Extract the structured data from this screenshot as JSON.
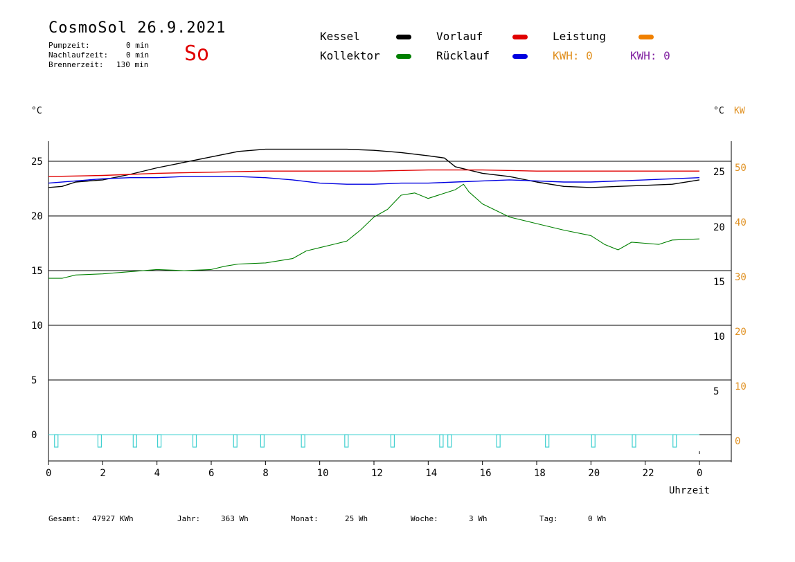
{
  "header": {
    "title": "CosmoSol 26.9.2021",
    "day": "So",
    "stats": [
      {
        "label": "Pumpzeit:",
        "value": "0 min"
      },
      {
        "label": "Nachlaufzeit:",
        "value": "0 min"
      },
      {
        "label": "Brennerzeit:",
        "value": "130 min"
      }
    ]
  },
  "legend": {
    "kessel": {
      "label": "Kessel",
      "color": "#000000"
    },
    "kollektor": {
      "label": "Kollektor",
      "color": "#008000"
    },
    "vorlauf": {
      "label": "Vorlauf",
      "color": "#e00000"
    },
    "ruecklauf": {
      "label": "Rücklauf",
      "color": "#0000e0"
    },
    "leistung": {
      "label": "Leistung",
      "color": "#f08000"
    },
    "kwh1": "KWH: 0",
    "kwh1_color": "#e09020",
    "kwh2": "KWH: 0",
    "kwh2_color": "#8020a0"
  },
  "axes": {
    "left_unit": "°C",
    "right_unit": "°C",
    "right_unit2": "KW",
    "xlabel": "Uhrzeit"
  },
  "footer": [
    {
      "label": "Gesamt:",
      "value": "47927 KWh"
    },
    {
      "label": "Jahr:",
      "value": "363 Wh"
    },
    {
      "label": "Monat:",
      "value": "25 Wh"
    },
    {
      "label": "Woche:",
      "value": "3 Wh"
    },
    {
      "label": "Tag:",
      "value": "0 Wh"
    }
  ],
  "chart_data": {
    "type": "line",
    "xlabel": "Uhrzeit",
    "ylabel": "°C",
    "x_ticks": [
      "0",
      "2",
      "4",
      "6",
      "8",
      "10",
      "12",
      "14",
      "16",
      "18",
      "20",
      "22",
      "0"
    ],
    "y_left_ticks": [
      "0",
      "5",
      "10",
      "15",
      "20",
      "25"
    ],
    "y_right_ticks": [
      "5",
      "10",
      "15",
      "20",
      "25"
    ],
    "y_kw_ticks": [
      "0",
      "10",
      "20",
      "30",
      "40",
      "50"
    ],
    "xlim": [
      0,
      24
    ],
    "ylim": [
      -2.5,
      27
    ],
    "grid": true,
    "series": [
      {
        "name": "Kessel",
        "color": "#000000",
        "x": [
          0,
          0.5,
          1,
          2,
          3,
          4,
          5,
          6,
          7,
          8,
          9,
          10,
          11,
          12,
          13,
          14,
          14.6,
          15,
          16,
          17,
          18,
          19,
          20,
          21,
          22,
          23,
          24
        ],
        "y": [
          22.6,
          22.7,
          23.1,
          23.3,
          23.8,
          24.4,
          24.9,
          25.4,
          25.9,
          26.1,
          26.1,
          26.1,
          26.1,
          26.0,
          25.8,
          25.5,
          25.3,
          24.5,
          23.9,
          23.6,
          23.1,
          22.7,
          22.6,
          22.7,
          22.8,
          22.9,
          23.3
        ]
      },
      {
        "name": "Vorlauf",
        "color": "#e00000",
        "x": [
          0,
          2,
          4,
          6,
          8,
          10,
          12,
          14,
          16,
          18,
          20,
          22,
          24
        ],
        "y": [
          23.6,
          23.7,
          23.9,
          24.0,
          24.1,
          24.1,
          24.1,
          24.2,
          24.2,
          24.1,
          24.1,
          24.1,
          24.1
        ]
      },
      {
        "name": "Rücklauf",
        "color": "#0000e0",
        "x": [
          0,
          1,
          2,
          3,
          4,
          5,
          6,
          7,
          8,
          9,
          10,
          11,
          12,
          13,
          14,
          15,
          16,
          17,
          18,
          19,
          20,
          21,
          22,
          23,
          24
        ],
        "y": [
          23.0,
          23.2,
          23.4,
          23.5,
          23.5,
          23.6,
          23.6,
          23.6,
          23.5,
          23.3,
          23.0,
          22.9,
          22.9,
          23.0,
          23.0,
          23.1,
          23.2,
          23.3,
          23.2,
          23.1,
          23.1,
          23.2,
          23.3,
          23.4,
          23.5
        ]
      },
      {
        "name": "Kollektor",
        "color": "#008000",
        "x": [
          0,
          0.5,
          1,
          2,
          3,
          4,
          5,
          6,
          6.5,
          7,
          8,
          9,
          9.5,
          10,
          10.5,
          11,
          11.5,
          12,
          12.5,
          13,
          13.5,
          14,
          14.5,
          15,
          15.3,
          15.5,
          16,
          16.5,
          17,
          18,
          19,
          20,
          20.5,
          21,
          21.5,
          22,
          22.5,
          23,
          24
        ],
        "y": [
          14.3,
          14.3,
          14.6,
          14.7,
          14.9,
          15.1,
          15.0,
          15.1,
          15.4,
          15.6,
          15.7,
          16.1,
          16.8,
          17.1,
          17.4,
          17.7,
          18.7,
          19.9,
          20.6,
          21.9,
          22.1,
          21.6,
          22.0,
          22.4,
          22.9,
          22.2,
          21.1,
          20.5,
          19.9,
          19.3,
          18.7,
          18.2,
          17.4,
          16.9,
          17.6,
          17.5,
          17.4,
          17.8,
          17.9
        ]
      },
      {
        "name": "Leistung",
        "color": "#40d0d0",
        "values_kw": "pulse markers near 0"
      }
    ],
    "pulses_x": [
      0.3,
      1.9,
      3.2,
      4.1,
      5.4,
      6.9,
      7.9,
      9.4,
      11.0,
      12.7,
      14.5,
      14.8,
      16.6,
      18.4,
      20.1,
      21.6,
      23.1
    ]
  }
}
